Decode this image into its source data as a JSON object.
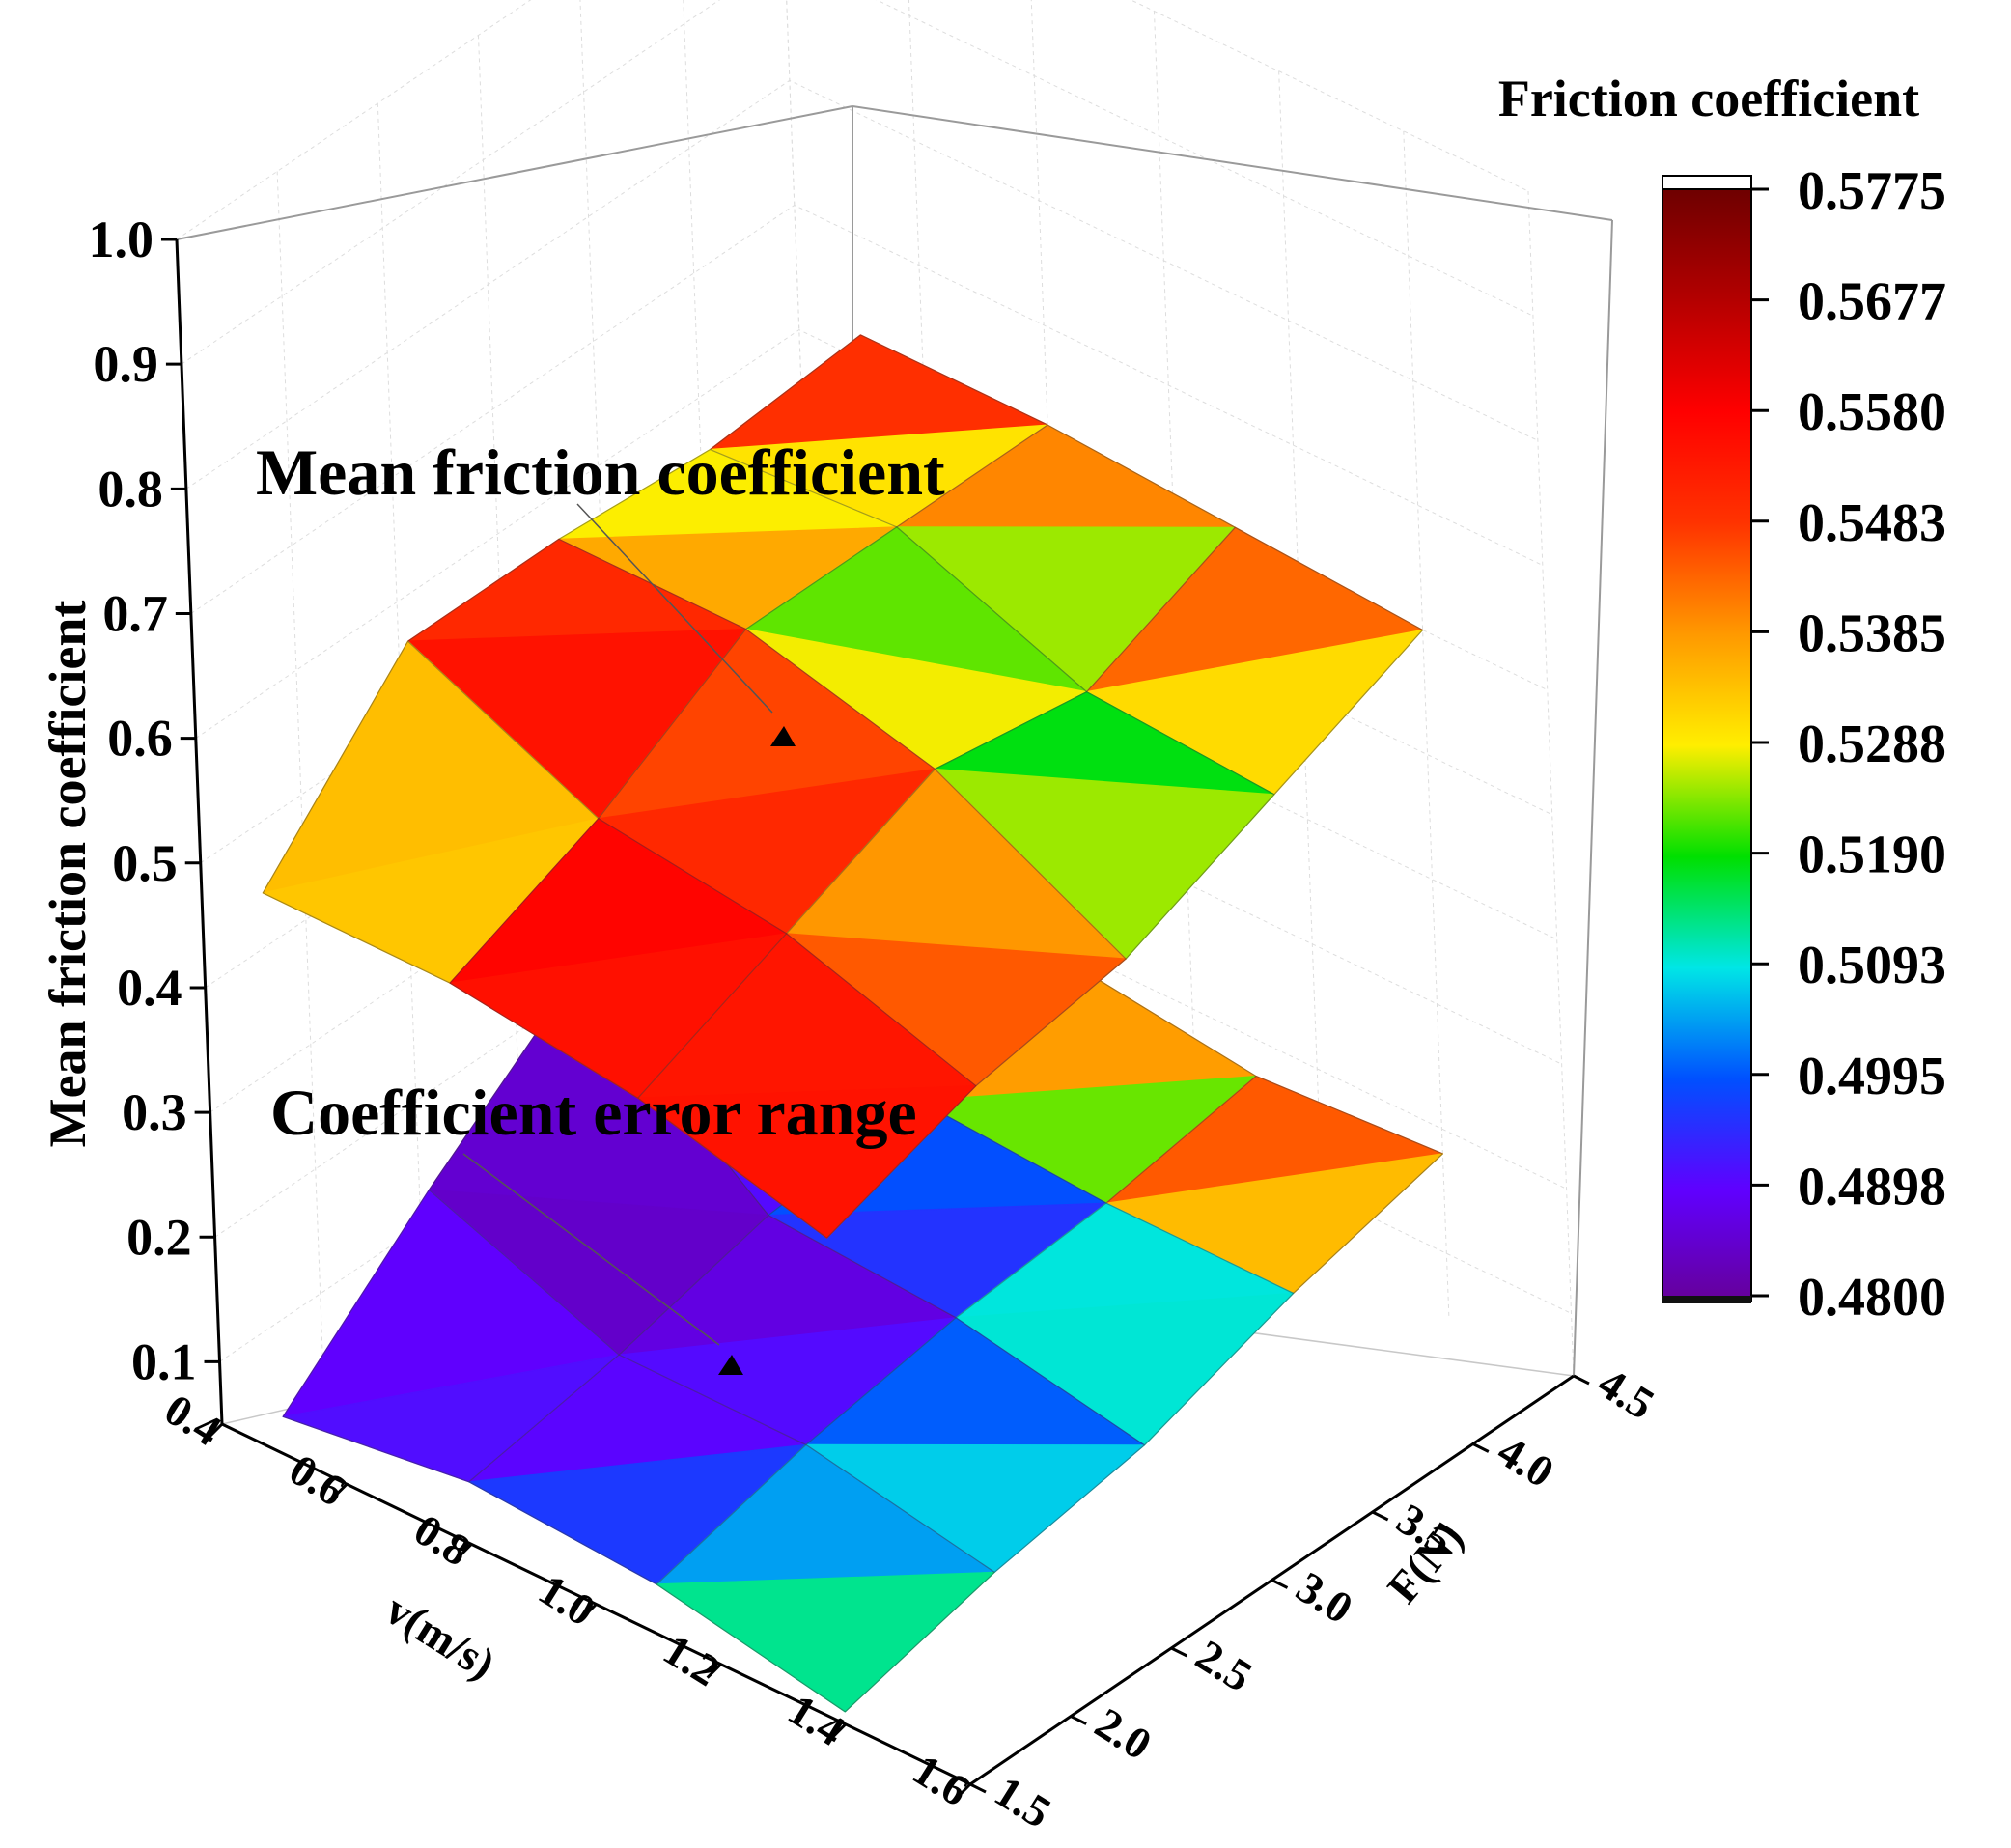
{
  "chart_data": {
    "type": "surface3d",
    "title": "",
    "xlabel": "v(m/s)",
    "ylabel": "F(N)",
    "zlabel": "Mean friction coefficient",
    "x_ticks": [
      "0.4",
      "0.6",
      "0.8",
      "1.0",
      "1.2",
      "1.4",
      "1.6"
    ],
    "y_ticks": [
      "1.5",
      "2.0",
      "2.5",
      "3.0",
      "3.5",
      "4.0",
      "4.5"
    ],
    "z_ticks": [
      "0.1",
      "0.2",
      "0.3",
      "0.4",
      "0.5",
      "0.6",
      "0.7",
      "0.8",
      "0.9",
      "1.0"
    ],
    "xlim": [
      0.4,
      1.6
    ],
    "ylim": [
      1.5,
      4.5
    ],
    "zlim": [
      0.05,
      1.0
    ],
    "grid": true,
    "colorbar": {
      "title": "Friction coefficient",
      "labels": [
        "0.5775",
        "0.5677",
        "0.5580",
        "0.5483",
        "0.5385",
        "0.5288",
        "0.5190",
        "0.5093",
        "0.4995",
        "0.4898",
        "0.4800"
      ],
      "colors": [
        "#6e0000",
        "#b40000",
        "#ff0000",
        "#ff3300",
        "#ff9900",
        "#ffee00",
        "#00e000",
        "#00e6e6",
        "#0050ff",
        "#6000ff",
        "#660099"
      ]
    },
    "annotations": [
      {
        "text": "Mean friction coefficient",
        "target": "upper-surface"
      },
      {
        "text": "Coefficient error range",
        "target": "lower-surface"
      }
    ],
    "series": [
      {
        "surface": "upper",
        "v": [
          0.5,
          0.8,
          1.1,
          1.4
        ],
        "F": [
          1.5,
          2.25,
          3.0,
          3.75,
          4.5
        ],
        "z": [
          [
            0.5,
            0.62,
            0.62,
            0.61,
            0.62
          ],
          [
            0.5,
            0.55,
            0.62,
            0.62,
            0.62
          ],
          [
            0.48,
            0.53,
            0.58,
            0.56,
            0.61
          ],
          [
            0.44,
            0.48,
            0.5,
            0.55,
            0.6
          ]
        ],
        "coef": [
          [
            0.482,
            0.556,
            0.552,
            0.519,
            0.572
          ],
          [
            0.553,
            0.565,
            0.543,
            0.515,
            0.556
          ],
          [
            0.558,
            0.554,
            0.532,
            0.51,
            0.55
          ],
          [
            0.556,
            0.55,
            0.53,
            0.513,
            0.57
          ]
        ]
      },
      {
        "surface": "lower",
        "v": [
          0.5,
          0.8,
          1.1,
          1.4
        ],
        "F": [
          1.5,
          2.25,
          3.0,
          3.75,
          4.5
        ],
        "z": [
          [
            0.08,
            0.18,
            0.27,
            0.2,
            0.2
          ],
          [
            0.1,
            0.12,
            0.15,
            0.16,
            0.19
          ],
          [
            0.09,
            0.12,
            0.14,
            0.15,
            0.17
          ],
          [
            0.06,
            0.09,
            0.11,
            0.15,
            0.18
          ]
        ],
        "coef": [
          [
            0.496,
            0.488,
            0.487,
            0.496,
            0.565
          ],
          [
            0.493,
            0.485,
            0.481,
            0.505,
            0.557
          ],
          [
            0.504,
            0.493,
            0.495,
            0.512,
            0.552
          ],
          [
            0.518,
            0.517,
            0.513,
            0.522,
            0.57
          ]
        ]
      }
    ]
  }
}
